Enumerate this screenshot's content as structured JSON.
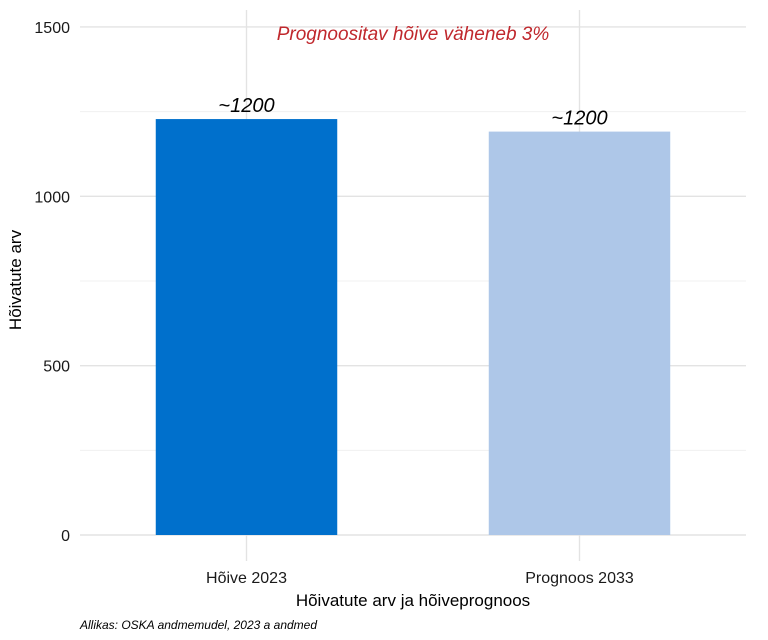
{
  "chart_data": {
    "type": "bar",
    "categories": [
      "Hõive 2023",
      "Prognoos 2033"
    ],
    "values": [
      1228,
      1191
    ],
    "data_labels": [
      "~1200",
      "~1200"
    ],
    "colors": [
      "#0070CC",
      "#AEC7E8"
    ],
    "annotation": "Prognoositav hõive väheneb 3%",
    "annotation_color": "#C0282D",
    "xlabel": "Hõivatute arv ja hõiveprognoos",
    "ylabel": "Hõivatute arv",
    "ylim": [
      0,
      1550
    ],
    "yticks": [
      0,
      500,
      1000,
      1500
    ],
    "grid": true,
    "caption": "Allikas: OSKA andmemudel, 2023 a andmed"
  }
}
